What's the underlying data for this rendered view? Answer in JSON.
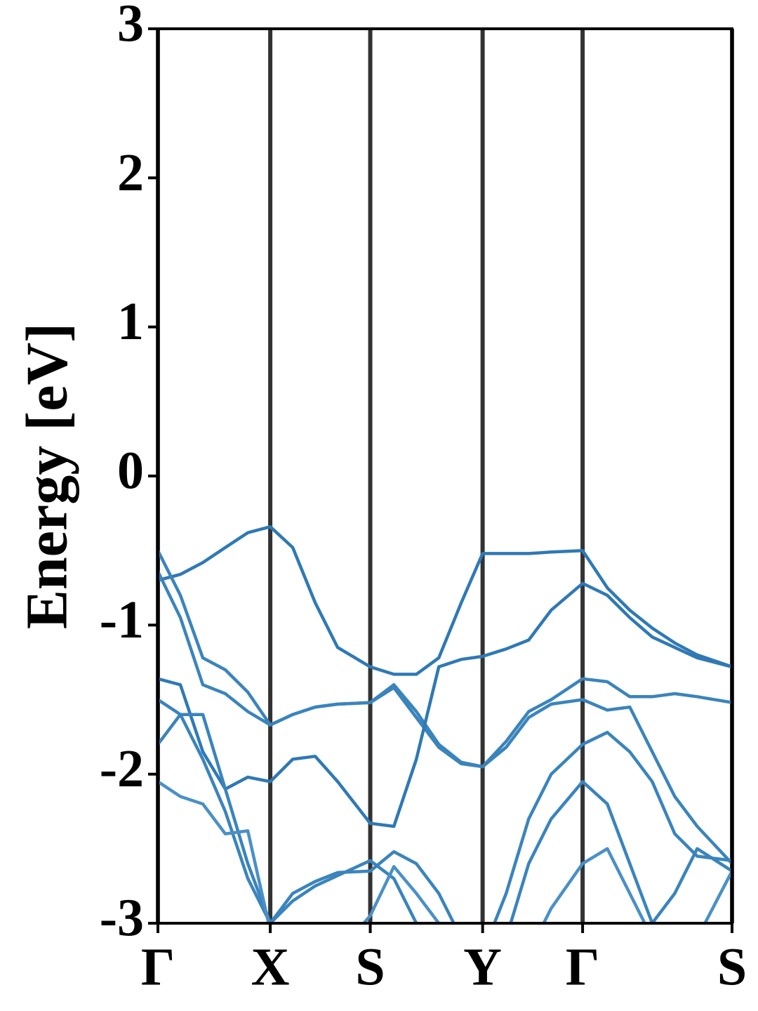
{
  "chart_data": {
    "type": "line",
    "y_label": "Energy [eV]",
    "ylim": [
      -3,
      3
    ],
    "yticks": [
      -3,
      -2,
      -1,
      0,
      1,
      2,
      3
    ],
    "xlim": [
      0,
      5.11
    ],
    "xticks": [
      {
        "value": 0,
        "label": "Γ"
      },
      {
        "value": 1.0,
        "label": "X"
      },
      {
        "value": 1.89,
        "label": "S"
      },
      {
        "value": 2.89,
        "label": "Y"
      },
      {
        "value": 3.78,
        "label": "Γ"
      },
      {
        "value": 5.11,
        "label": "S"
      }
    ],
    "grid": true,
    "grid_color": "#333333",
    "x": [
      0,
      0.2,
      0.4,
      0.6,
      0.8,
      1.0,
      1.2,
      1.4,
      1.6,
      1.89,
      2.1,
      2.3,
      2.5,
      2.7,
      2.89,
      3.1,
      3.3,
      3.5,
      3.78,
      4.0,
      4.2,
      4.4,
      4.6,
      4.8,
      5.11
    ],
    "series": [
      {
        "color": "#2f79b5",
        "values": [
          -0.7,
          -0.66,
          -0.58,
          -0.48,
          -0.38,
          -0.34,
          -0.48,
          -0.85,
          -1.15,
          -1.28,
          -1.33,
          -1.33,
          -1.22,
          -0.85,
          -0.52,
          -0.52,
          -0.52,
          -0.51,
          -0.5,
          -0.75,
          -0.9,
          -1.02,
          -1.12,
          -1.2,
          -1.28
        ]
      },
      {
        "color": "#3a84bd",
        "values": [
          -0.5,
          -0.8,
          -1.22,
          -1.3,
          -1.45,
          -1.67,
          -1.6,
          -1.55,
          -1.53,
          -1.52,
          -1.42,
          -1.62,
          -1.82,
          -1.93,
          -1.95,
          -1.82,
          -1.62,
          -1.53,
          -1.5,
          -1.57,
          -1.55,
          -1.85,
          -2.15,
          -2.35,
          -2.6
        ]
      },
      {
        "color": "#3a84bd",
        "values": [
          -0.64,
          -0.95,
          -1.4,
          -1.46,
          -1.58,
          -1.67,
          -1.6,
          -1.55,
          -1.53,
          -1.52,
          -1.4,
          -1.58,
          -1.8,
          -1.92,
          -1.95,
          -1.78,
          -1.58,
          -1.5,
          -1.36,
          -1.38,
          -1.48,
          -1.48,
          -1.46,
          -1.48,
          -1.52
        ]
      },
      {
        "color": "#2f79b5",
        "values": [
          -1.36,
          -1.4,
          -1.85,
          -2.1,
          -2.02,
          -2.05,
          -1.9,
          -1.88,
          -2.05,
          -2.33,
          -2.35,
          -1.9,
          -1.28,
          -1.23,
          -1.21,
          -1.16,
          -1.1,
          -0.9,
          -0.72,
          -0.8,
          -0.95,
          -1.08,
          -1.15,
          -1.22,
          -1.28
        ]
      },
      {
        "color": "#3a84bd",
        "values": [
          -1.5,
          -1.6,
          -1.9,
          -2.25,
          -2.7,
          -3.0,
          -2.85,
          -2.75,
          -2.68,
          -2.58,
          -2.7,
          -3.0,
          -3.3,
          -3.5,
          -3.2,
          -2.8,
          -2.3,
          -2.0,
          -1.8,
          -1.72,
          -1.85,
          -2.05,
          -2.4,
          -2.55,
          -2.58
        ]
      },
      {
        "color": "#3a84bd",
        "values": [
          -1.8,
          -1.6,
          -1.6,
          -2.1,
          -2.6,
          -3.0,
          -2.8,
          -2.72,
          -2.66,
          -2.65,
          -2.52,
          -2.6,
          -2.8,
          -3.1,
          -3.3,
          -3.1,
          -2.6,
          -2.3,
          -2.05,
          -2.2,
          -2.6,
          -3.0,
          -2.8,
          -2.5,
          -2.65
        ]
      },
      {
        "color": "#4a90c6",
        "values": [
          -2.05,
          -2.15,
          -2.2,
          -2.4,
          -2.38,
          -3.05,
          -3.3,
          -3.4,
          -3.2,
          -2.95,
          -2.62,
          -2.8,
          -3.0,
          -3.2,
          -3.3,
          -3.4,
          -3.2,
          -2.9,
          -2.6,
          -2.5,
          -2.8,
          -3.1,
          -3.3,
          -3.1,
          -2.65
        ]
      }
    ]
  }
}
